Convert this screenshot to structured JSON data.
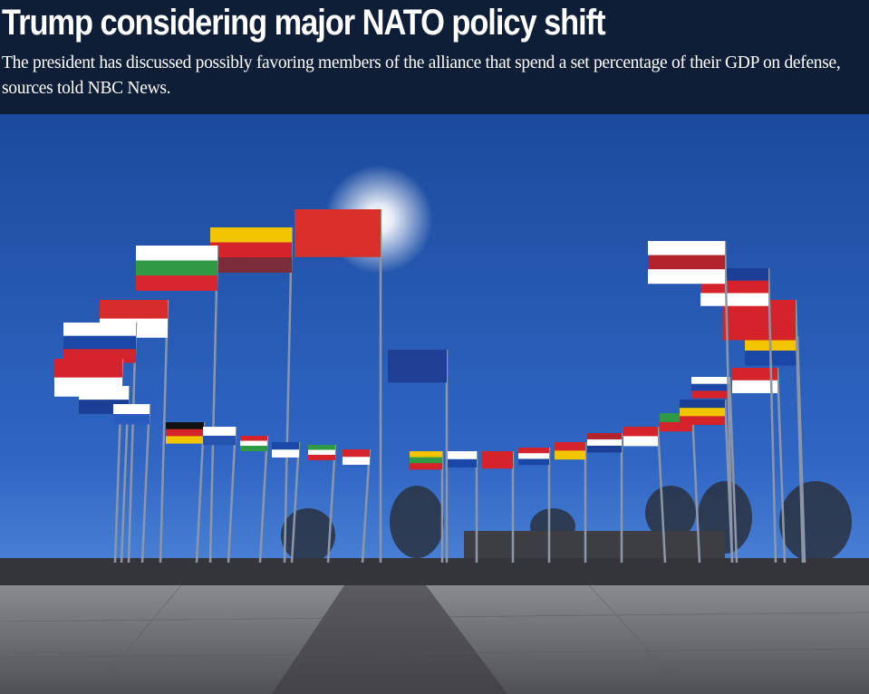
{
  "article": {
    "headline": "Trump considering major NATO policy shift",
    "dek": "The president has discussed possibly favoring members of the alliance that spend a set percentage of their GDP on defense, sources told NBC News."
  },
  "photo": {
    "subject": "nato-flags-photo",
    "colors": {
      "sky_top": "#1b4a9c",
      "sky_bottom": "#4a86dc",
      "pavement": "#6d6e75",
      "background": "#0f1e37"
    }
  }
}
